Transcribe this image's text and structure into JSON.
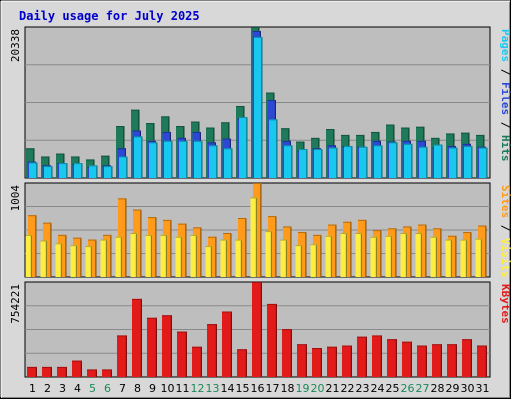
{
  "chart_data": {
    "type": "bar",
    "title": "Daily usage for July 2025",
    "categories": [
      "1",
      "2",
      "3",
      "4",
      "5",
      "6",
      "7",
      "8",
      "9",
      "10",
      "11",
      "12",
      "13",
      "14",
      "15",
      "16",
      "17",
      "18",
      "19",
      "20",
      "21",
      "22",
      "23",
      "24",
      "25",
      "26",
      "27",
      "28",
      "29",
      "30",
      "31"
    ],
    "weekend_days": [
      "5",
      "6",
      "12",
      "13",
      "19",
      "20",
      "26",
      "27"
    ],
    "colors": {
      "title": "#0000cc",
      "hits": "#1f7a5a",
      "files": "#2c48d4",
      "pages": "#19c8ef",
      "visits": "#ff9a1a",
      "sites": "#ffee40",
      "kbytes": "#e31a1a",
      "weekend_tick": "#1a8a5a",
      "plot_bg": "#bebebe",
      "frame_bg": "#d8d8d8"
    },
    "panels": [
      {
        "name": "hits_files_pages",
        "ymax_label": "20338",
        "ylim": [
          0,
          20338
        ],
        "right_label": [
          {
            "text": "Pages",
            "color_key": "pages"
          },
          {
            "text": " / ",
            "color_key": "sep"
          },
          {
            "text": "Files",
            "color_key": "files"
          },
          {
            "text": " / ",
            "color_key": "sep"
          },
          {
            "text": "Hits",
            "color_key": "hits"
          }
        ],
        "series": [
          {
            "name": "Hits",
            "color_key": "hits",
            "values": [
              4000,
              2900,
              3300,
              2900,
              2500,
              3000,
              7000,
              9200,
              7400,
              8300,
              7000,
              7600,
              6800,
              7500,
              9700,
              20338,
              11500,
              6700,
              4900,
              5400,
              6600,
              5800,
              5800,
              6200,
              7200,
              6800,
              6900,
              5400,
              6000,
              6100,
              5800
            ]
          },
          {
            "name": "Files",
            "color_key": "files",
            "values": [
              2200,
              1700,
              2000,
              1900,
              1500,
              1700,
              4000,
              6400,
              5000,
              6200,
              5400,
              6200,
              4800,
              5300,
              8000,
              19800,
              10500,
              5000,
              3700,
              4000,
              4400,
              4300,
              4200,
              5000,
              4900,
              5000,
              5000,
              4100,
              4300,
              4600,
              4200
            ]
          },
          {
            "name": "Pages",
            "color_key": "pages",
            "values": [
              2100,
              1600,
              2000,
              2000,
              1700,
              1600,
              2900,
              5600,
              4800,
              5000,
              5000,
              5000,
              4400,
              4000,
              8200,
              19000,
              7900,
              4400,
              3900,
              3900,
              4100,
              4300,
              4200,
              4400,
              4800,
              4600,
              4200,
              4500,
              4100,
              4300,
              4100
            ]
          }
        ]
      },
      {
        "name": "visits_sites",
        "ymax_label": "1004",
        "ylim": [
          0,
          1004
        ],
        "right_label": [
          {
            "text": "Sites",
            "color_key": "visits"
          },
          {
            "text": " / ",
            "color_key": "sep"
          },
          {
            "text": "Visits",
            "color_key": "sites"
          }
        ],
        "series": [
          {
            "name": "Visits",
            "color_key": "visits",
            "values": [
              660,
              580,
              450,
              420,
              400,
              450,
              840,
              720,
              640,
              610,
              570,
              530,
              430,
              470,
              630,
              1004,
              650,
              540,
              480,
              450,
              560,
              590,
              610,
              500,
              520,
              540,
              560,
              520,
              440,
              480,
              550
            ]
          },
          {
            "name": "Sites",
            "color_key": "sites",
            "values": [
              450,
              390,
              360,
              340,
              330,
              400,
              430,
              470,
              450,
              450,
              430,
              450,
              330,
              400,
              400,
              850,
              490,
              400,
              340,
              350,
              440,
              470,
              470,
              430,
              440,
              470,
              470,
              430,
              400,
              400,
              410
            ]
          }
        ]
      },
      {
        "name": "kbytes",
        "ymax_label": "754221",
        "ylim": [
          0,
          754221
        ],
        "right_label": [
          {
            "text": "KBytes",
            "color_key": "kbytes"
          }
        ],
        "series": [
          {
            "name": "KBytes",
            "color_key": "kbytes",
            "values": [
              80000,
              80000,
              80000,
              130000,
              60000,
              60000,
              330000,
              620000,
              470000,
              490000,
              360000,
              240000,
              420000,
              520000,
              220000,
              754221,
              580000,
              380000,
              260000,
              230000,
              240000,
              250000,
              320000,
              330000,
              300000,
              280000,
              250000,
              260000,
              260000,
              300000,
              250000
            ]
          }
        ]
      }
    ]
  }
}
